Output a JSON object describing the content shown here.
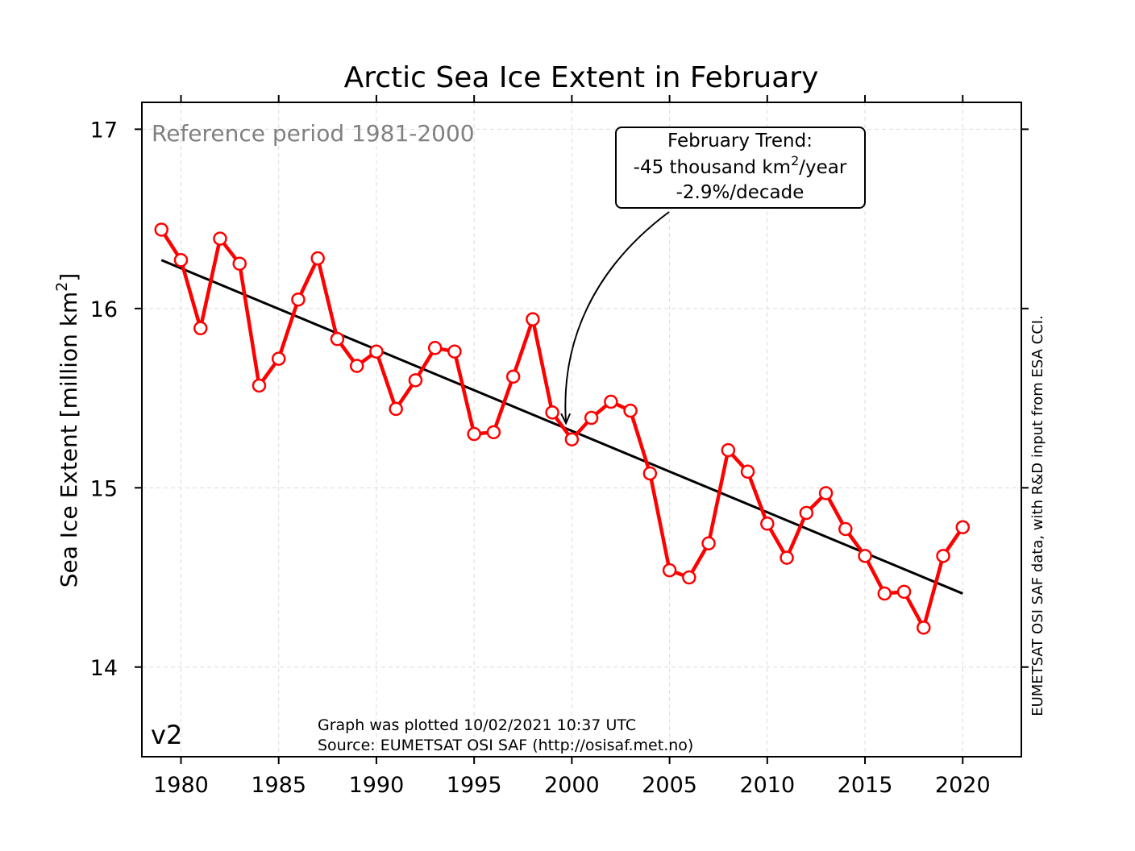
{
  "chart_data": {
    "type": "line",
    "title": "Arctic Sea Ice Extent in February",
    "ylabel_text": "Sea Ice Extent [million km",
    "ylabel_sup": "2",
    "ylabel_close": "]",
    "xlim": [
      1978,
      2023
    ],
    "ylim": [
      13.5,
      17.15
    ],
    "xticks": [
      1980,
      1985,
      1990,
      1995,
      2000,
      2005,
      2010,
      2015,
      2020
    ],
    "yticks": [
      14,
      15,
      16,
      17
    ],
    "grid": true,
    "x": [
      1979,
      1980,
      1981,
      1982,
      1983,
      1984,
      1985,
      1986,
      1987,
      1988,
      1989,
      1990,
      1991,
      1992,
      1993,
      1994,
      1995,
      1996,
      1997,
      1998,
      1999,
      2000,
      2001,
      2002,
      2003,
      2004,
      2005,
      2006,
      2007,
      2008,
      2009,
      2010,
      2011,
      2012,
      2013,
      2014,
      2015,
      2016,
      2017,
      2018,
      2019,
      2020
    ],
    "series": [
      {
        "values": [
          16.44,
          16.27,
          15.89,
          16.39,
          16.25,
          15.57,
          15.72,
          16.05,
          16.28,
          15.83,
          15.68,
          15.76,
          15.44,
          15.6,
          15.78,
          15.76,
          15.3,
          15.31,
          15.62,
          15.94,
          15.42,
          15.27,
          15.39,
          15.48,
          15.43,
          15.08,
          14.54,
          14.5,
          14.69,
          15.21,
          15.09,
          14.8,
          14.61,
          14.86,
          14.97,
          14.77,
          14.62,
          14.41,
          14.42,
          14.22,
          14.62,
          14.78
        ],
        "color": "#ff0000"
      },
      {
        "trend_start": [
          1979,
          16.27
        ],
        "trend_end": [
          2020,
          14.41
        ],
        "color": "#000000"
      }
    ],
    "reference_text": "Reference period 1981-2000",
    "version_label": "v2",
    "annotation": {
      "line1": "February Trend:",
      "line2_pre": "-45 thousand km",
      "line2_sup": "2",
      "line2_post": "/year",
      "line3": "-2.9%/decade",
      "point": [
        1999.7,
        15.36
      ]
    },
    "footer_line1": "Graph was plotted 10/02/2021 10:37 UTC",
    "footer_line2": "Source: EUMETSAT OSI SAF (http://osisaf.met.no)",
    "side_credit": "EUMETSAT OSI SAF data, with R&D input from ESA CCI."
  }
}
